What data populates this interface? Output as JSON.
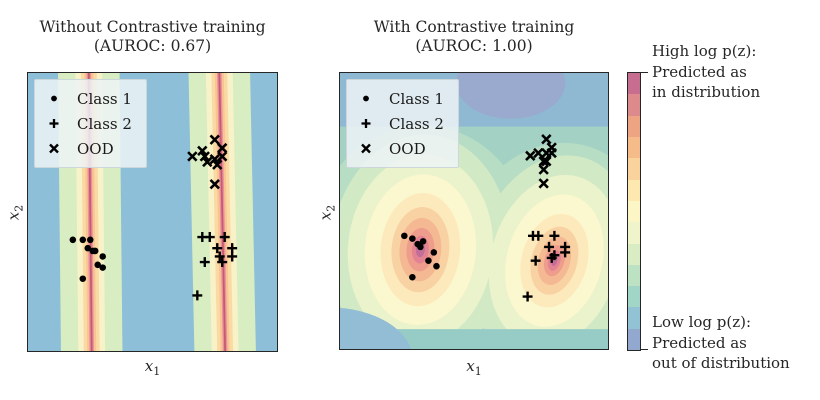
{
  "panels": [
    {
      "title_line1": "Without Contrastive training",
      "title_line2": "(AUROC: 0.67)",
      "xlabel_base": "x",
      "xlabel_sub": "1",
      "ylabel_base": "x",
      "ylabel_sub": "2"
    },
    {
      "title_line1": "With Contrastive training",
      "title_line2": "(AUROC: 1.00)",
      "xlabel_base": "x",
      "xlabel_sub": "1",
      "ylabel_base": "x",
      "ylabel_sub": "2"
    }
  ],
  "legend": {
    "items": [
      {
        "marker": "dot",
        "label": "Class 1"
      },
      {
        "marker": "plus",
        "label": "Class 2"
      },
      {
        "marker": "x",
        "label": "OOD"
      }
    ]
  },
  "colorbar": {
    "colors": [
      "#c76e90",
      "#dd8a8d",
      "#eda483",
      "#f5bb88",
      "#fad29b",
      "#fde8b0",
      "#fcf6c6",
      "#f0f4cb",
      "#d9ecc4",
      "#bde2c3",
      "#a1d5c6",
      "#92c3d4",
      "#93a8ce"
    ],
    "top_label_lines": [
      "High log p(z):",
      "Predicted as",
      "in distribution"
    ],
    "bottom_label_lines": [
      "Low log p(z):",
      "Predicted as",
      "out of distribution"
    ]
  },
  "chart_data": [
    {
      "type": "scatter",
      "title": "Without Contrastive training (AUROC: 0.67)",
      "xlabel": "x1",
      "ylabel": "x2",
      "auroc": 0.67,
      "contour_style": "two narrow tilted vertical density ridges (green/orange/red) over blue low-density background",
      "palette": {
        "bg": "#8dbfd8",
        "band_green": "#d9edc3",
        "band_cream": "#f8f2c9",
        "band_pale_orange": "#fbd9a3",
        "band_orange": "#f8c492",
        "band_pink": "#e8909c",
        "band_red": "#c65a70"
      },
      "bands": [
        {
          "center_x": 0.25,
          "tilt_deg": -0.6
        },
        {
          "center_x": 0.78,
          "tilt_deg": -1.2
        }
      ],
      "series": [
        {
          "name": "Class 1",
          "marker": "dot",
          "points": [
            [
              0.18,
              0.4
            ],
            [
              0.22,
              0.4
            ],
            [
              0.25,
              0.4
            ],
            [
              0.24,
              0.37
            ],
            [
              0.26,
              0.36
            ],
            [
              0.27,
              0.36
            ],
            [
              0.3,
              0.34
            ],
            [
              0.28,
              0.31
            ],
            [
              0.3,
              0.3
            ],
            [
              0.22,
              0.26
            ]
          ]
        },
        {
          "name": "Class 2",
          "marker": "plus",
          "points": [
            [
              0.7,
              0.41
            ],
            [
              0.73,
              0.41
            ],
            [
              0.79,
              0.41
            ],
            [
              0.76,
              0.37
            ],
            [
              0.82,
              0.37
            ],
            [
              0.77,
              0.34
            ],
            [
              0.82,
              0.34
            ],
            [
              0.71,
              0.32
            ],
            [
              0.78,
              0.32
            ],
            [
              0.68,
              0.2
            ]
          ]
        },
        {
          "name": "OOD",
          "marker": "x",
          "points": [
            [
              0.75,
              0.76
            ],
            [
              0.78,
              0.73
            ],
            [
              0.7,
              0.72
            ],
            [
              0.66,
              0.7
            ],
            [
              0.71,
              0.7
            ],
            [
              0.75,
              0.69
            ],
            [
              0.78,
              0.7
            ],
            [
              0.72,
              0.68
            ],
            [
              0.76,
              0.67
            ],
            [
              0.75,
              0.6
            ]
          ]
        }
      ]
    },
    {
      "type": "scatter",
      "title": "With Contrastive training (AUROC: 1.00)",
      "xlabel": "x1",
      "ylabel": "x2",
      "auroc": 1.0,
      "contour_style": "two radial density peaks centered on the class clusters, teal/blue low-density background",
      "palette": {
        "bg_teal": "#a3d2c5",
        "top_blue": "#8fb9d2",
        "top_purple": "#99aace",
        "ring_green1": "#b7ddc4",
        "ring_green2": "#d2e9c6",
        "ring_green3": "#eaf3cb",
        "ring_yellow": "#fbf7cf",
        "hot1": "#fce9bc",
        "hot2": "#f9d2a3",
        "hot3": "#f4b893",
        "hot4": "#ee9d8d",
        "hot5": "#e28292",
        "hot6": "#c26e99",
        "bottom_teal": "#97cbc6",
        "corner_blue": "#93bdd4"
      },
      "peaks": [
        {
          "x": 0.3,
          "y": 0.36,
          "tilt_deg": 5
        },
        {
          "x": 0.8,
          "y": 0.32,
          "tilt_deg": 16
        }
      ],
      "series": [
        {
          "name": "Class 1",
          "marker": "dot",
          "points": [
            [
              0.24,
              0.41
            ],
            [
              0.27,
              0.4
            ],
            [
              0.31,
              0.39
            ],
            [
              0.29,
              0.38
            ],
            [
              0.3,
              0.37
            ],
            [
              0.35,
              0.35
            ],
            [
              0.33,
              0.32
            ],
            [
              0.36,
              0.3
            ],
            [
              0.27,
              0.26
            ]
          ]
        },
        {
          "name": "Class 2",
          "marker": "plus",
          "points": [
            [
              0.72,
              0.41
            ],
            [
              0.74,
              0.41
            ],
            [
              0.8,
              0.41
            ],
            [
              0.78,
              0.37
            ],
            [
              0.84,
              0.37
            ],
            [
              0.8,
              0.34
            ],
            [
              0.84,
              0.35
            ],
            [
              0.73,
              0.32
            ],
            [
              0.79,
              0.33
            ],
            [
              0.7,
              0.19
            ]
          ]
        },
        {
          "name": "OOD",
          "marker": "x",
          "points": [
            [
              0.77,
              0.76
            ],
            [
              0.79,
              0.73
            ],
            [
              0.74,
              0.71
            ],
            [
              0.71,
              0.7
            ],
            [
              0.77,
              0.71
            ],
            [
              0.79,
              0.71
            ],
            [
              0.76,
              0.68
            ],
            [
              0.77,
              0.68
            ],
            [
              0.76,
              0.65
            ],
            [
              0.76,
              0.6
            ]
          ]
        }
      ]
    }
  ]
}
